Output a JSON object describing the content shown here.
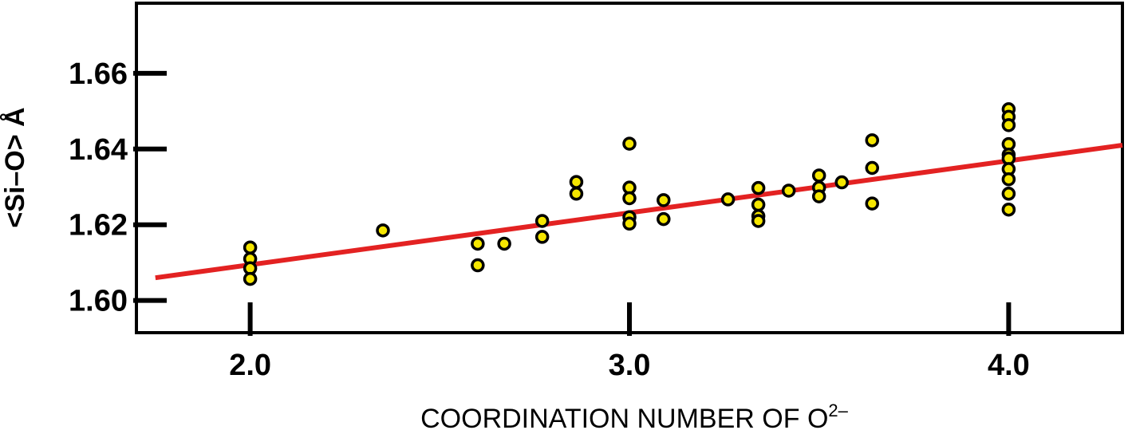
{
  "chart_data": {
    "type": "scatter",
    "title": "",
    "xlabel_main": "COORDINATION NUMBER OF O",
    "xlabel_sup": "2–",
    "ylabel": "<Si–O>  Å",
    "xlim": [
      1.7,
      4.3
    ],
    "ylim": [
      1.5915,
      1.6785
    ],
    "x_ticks": [
      2.0,
      3.0,
      4.0
    ],
    "x_tick_labels": [
      "2.0",
      "3.0",
      "4.0"
    ],
    "y_ticks": [
      1.6,
      1.62,
      1.64,
      1.66
    ],
    "y_tick_labels": [
      "1.60",
      "1.62",
      "1.64",
      "1.66"
    ],
    "grid": false,
    "legend": "none",
    "colors": {
      "point_fill": "#f5e600",
      "point_edge": "#000000",
      "fit_line": "#e32222"
    },
    "series": [
      {
        "points": [
          [
            2.0,
            1.614
          ],
          [
            2.0,
            1.611
          ],
          [
            2.0,
            1.6085
          ],
          [
            2.0,
            1.6057
          ],
          [
            2.35,
            1.6185
          ],
          [
            2.6,
            1.615
          ],
          [
            2.6,
            1.6093
          ],
          [
            2.67,
            1.615
          ],
          [
            2.77,
            1.621
          ],
          [
            2.77,
            1.6168
          ],
          [
            2.86,
            1.6313
          ],
          [
            2.86,
            1.6282
          ],
          [
            3.0,
            1.6414
          ],
          [
            3.0,
            1.6298
          ],
          [
            3.0,
            1.627
          ],
          [
            3.0,
            1.622
          ],
          [
            3.0,
            1.6203
          ],
          [
            3.09,
            1.6265
          ],
          [
            3.09,
            1.6215
          ],
          [
            3.26,
            1.6267
          ],
          [
            3.34,
            1.6297
          ],
          [
            3.34,
            1.6253
          ],
          [
            3.34,
            1.6223
          ],
          [
            3.34,
            1.621
          ],
          [
            3.42,
            1.629
          ],
          [
            3.5,
            1.633
          ],
          [
            3.5,
            1.6298
          ],
          [
            3.5,
            1.6275
          ],
          [
            3.56,
            1.6312
          ],
          [
            3.64,
            1.6423
          ],
          [
            3.64,
            1.635
          ],
          [
            3.64,
            1.6256
          ],
          [
            4.0,
            1.6505
          ],
          [
            4.0,
            1.6485
          ],
          [
            4.0,
            1.6463
          ],
          [
            4.0,
            1.6413
          ],
          [
            4.0,
            1.6385
          ],
          [
            4.0,
            1.6375
          ],
          [
            4.0,
            1.6347
          ],
          [
            4.0,
            1.632
          ],
          [
            4.0,
            1.6282
          ],
          [
            4.0,
            1.624
          ]
        ]
      }
    ],
    "fit_line": {
      "x": [
        1.75,
        4.3
      ],
      "y": [
        1.606,
        1.641
      ]
    }
  }
}
